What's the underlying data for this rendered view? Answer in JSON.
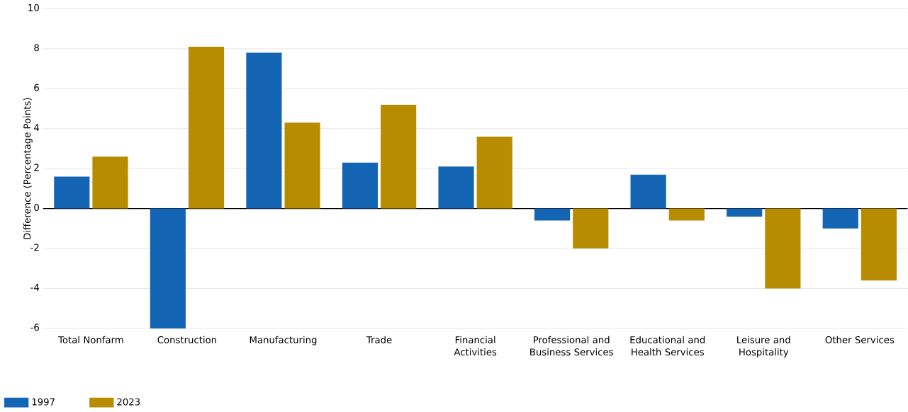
{
  "chart_data": {
    "type": "bar",
    "ylabel": "Difference (Percentage Points)",
    "categories": [
      "Total Nonfarm",
      "Construction",
      "Manufacturing",
      "Trade",
      "Financial Activities",
      "Professional and Business Services",
      "Educational and Health Services",
      "Leisure and Hospitality",
      "Other Services"
    ],
    "series": [
      {
        "name": "1997",
        "color": "#1464b4",
        "values": [
          1.6,
          -6.0,
          7.8,
          2.3,
          2.1,
          -0.6,
          1.7,
          -0.4,
          -1.0
        ]
      },
      {
        "name": "2023",
        "color": "#b88c00",
        "values": [
          2.6,
          8.1,
          4.3,
          5.2,
          3.6,
          -2.0,
          -0.6,
          -4.0,
          -3.6
        ]
      }
    ],
    "ylim": [
      -6,
      10
    ],
    "yticks": [
      -6,
      -4,
      -2,
      0,
      2,
      4,
      6,
      8,
      10
    ],
    "grid": "y",
    "legend": "bottom left"
  }
}
